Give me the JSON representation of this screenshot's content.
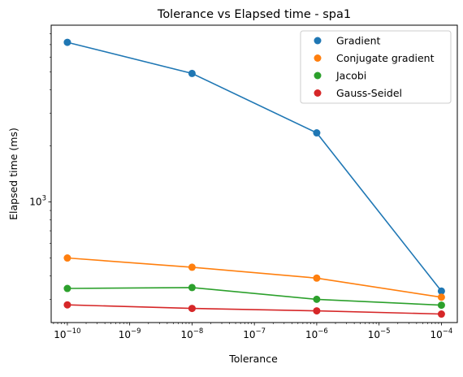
{
  "chart_data": {
    "type": "line",
    "title": "Tolerance vs Elapsed time - spa1",
    "xlabel": "Tolerance",
    "ylabel": "Elapsed time (ms)",
    "x_scale": "log",
    "y_scale": "log",
    "x": [
      1e-10,
      1e-08,
      1e-06,
      0.0001
    ],
    "x_ticks": [
      {
        "value": 1e-10,
        "base": "10",
        "exp": "−10"
      },
      {
        "value": 1e-09,
        "base": "10",
        "exp": "−9"
      },
      {
        "value": 1e-08,
        "base": "10",
        "exp": "−8"
      },
      {
        "value": 1e-07,
        "base": "10",
        "exp": "−7"
      },
      {
        "value": 1e-06,
        "base": "10",
        "exp": "−6"
      },
      {
        "value": 1e-05,
        "base": "10",
        "exp": "−5"
      },
      {
        "value": 0.0001,
        "base": "10",
        "exp": "−4"
      }
    ],
    "y_ticks": [
      {
        "value": 1000,
        "base": "10",
        "exp": "3"
      }
    ],
    "xlim": [
      5.5e-11,
      0.00018
    ],
    "ylim": [
      225,
      8900
    ],
    "grid": false,
    "legend_position": "top-right",
    "series": [
      {
        "name": "Gradient",
        "color": "#1f77b4",
        "values": [
          7200,
          4900,
          2350,
          332
        ]
      },
      {
        "name": "Conjugate gradient",
        "color": "#ff7f0e",
        "values": [
          500,
          446,
          390,
          308
        ]
      },
      {
        "name": "Jacobi",
        "color": "#2ca02c",
        "values": [
          343,
          347,
          300,
          279
        ]
      },
      {
        "name": "Gauss-Seidel",
        "color": "#d62728",
        "values": [
          280,
          268,
          260,
          250
        ]
      }
    ]
  }
}
